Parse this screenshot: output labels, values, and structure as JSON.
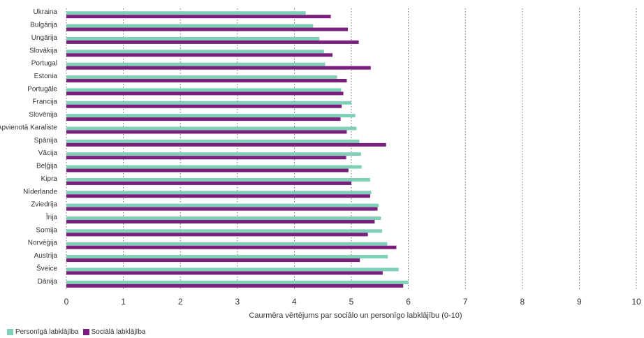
{
  "chart_data": {
    "type": "bar",
    "orientation": "horizontal",
    "categories": [
      "Ukraina",
      "Bulgārija",
      "Ungārija",
      "Slovākija",
      "Portugal",
      "Estonia",
      "Portugāle",
      "Francija",
      "Slovēnija",
      "Apvienotā Karaliste",
      "Spānija",
      "Vācija",
      "Beļģija",
      "Kipra",
      "Nīderlande",
      "Zviedrija",
      "Īrija",
      "Somija",
      "Norvēģija",
      "Austrija",
      "Šveice",
      "Dānija"
    ],
    "series": [
      {
        "name": "Personīgā labklājība",
        "color": "#7fcfb9",
        "values": [
          4.2,
          4.33,
          4.44,
          4.52,
          4.54,
          4.75,
          4.82,
          5.0,
          5.07,
          5.09,
          5.14,
          5.17,
          5.18,
          5.33,
          5.35,
          5.48,
          5.52,
          5.54,
          5.63,
          5.64,
          5.83,
          6.0
        ]
      },
      {
        "name": "Sociālā labklājība",
        "color": "#7b1f7d",
        "values": [
          4.64,
          4.94,
          5.13,
          4.67,
          5.34,
          4.92,
          4.86,
          4.83,
          4.81,
          4.92,
          5.61,
          4.91,
          4.95,
          5.0,
          5.33,
          5.46,
          5.41,
          5.29,
          5.79,
          5.15,
          5.55,
          5.91
        ]
      }
    ],
    "xlabel": "Caurmēra vērtējums par sociālo un personīgo labklājību (0-10)",
    "xlim": [
      0,
      10
    ],
    "xticks": [
      "0",
      "1",
      "2",
      "3",
      "4",
      "5",
      "6",
      "7",
      "8",
      "9",
      "10"
    ],
    "grid": "vertical dotted",
    "legend_position": "bottom-left"
  }
}
